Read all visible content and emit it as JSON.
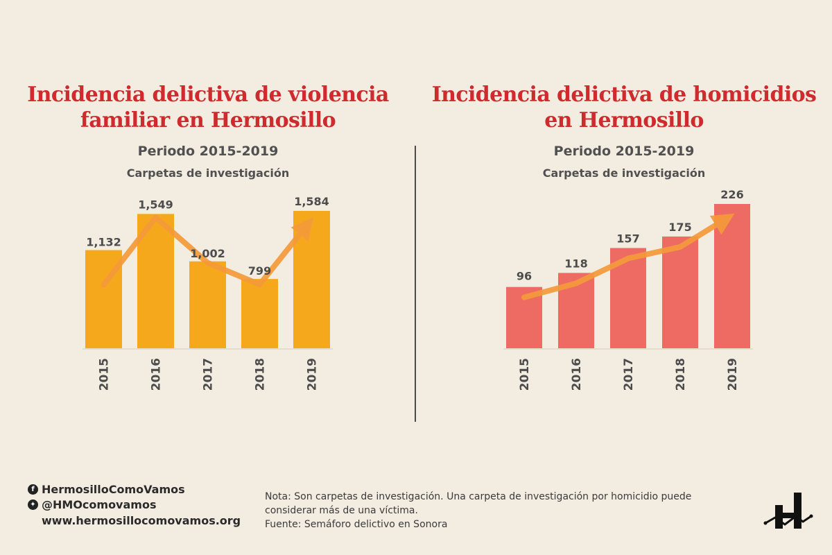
{
  "footer": {
    "facebook": "HermosilloComoVamos",
    "twitter": "@HMOcomovamos",
    "website": "www.hermosillocomovamos.org",
    "note": "Nota: Son carpetas de investigación. Una carpeta de investigación por homicidio puede considerar más de una víctima.",
    "source": "Fuente: Semáforo delictivo en Sonora"
  },
  "chart_data": [
    {
      "type": "bar",
      "title_lines": [
        "Incidencia delictiva de violencia",
        "familiar en Hermosillo"
      ],
      "subtitle": "Periodo 2015-2019",
      "ylabel": "Carpetas de investigación",
      "categories": [
        "2015",
        "2016",
        "2017",
        "2018",
        "2019"
      ],
      "values": [
        1132,
        1549,
        1002,
        799,
        1584
      ],
      "value_labels": [
        "1,132",
        "1,549",
        "1,002",
        "799",
        "1,584"
      ],
      "ylim": [
        0,
        1584
      ],
      "bar_color": "#f6a81c",
      "trend_color": "#f49a3a",
      "trend_line": true,
      "grid": false
    },
    {
      "type": "bar",
      "title_lines": [
        "Incidencia delictiva de homicidios",
        "en Hermosillo"
      ],
      "subtitle": "Periodo 2015-2019",
      "ylabel": "Carpetas de investigación",
      "categories": [
        "2015",
        "2016",
        "2017",
        "2018",
        "2019"
      ],
      "values": [
        96,
        118,
        157,
        175,
        226
      ],
      "value_labels": [
        "96",
        "118",
        "157",
        "175",
        "226"
      ],
      "ylim": [
        0,
        226
      ],
      "bar_color": "#ed6b62",
      "trend_color": "#f49a3a",
      "trend_line": true,
      "grid": false
    }
  ]
}
